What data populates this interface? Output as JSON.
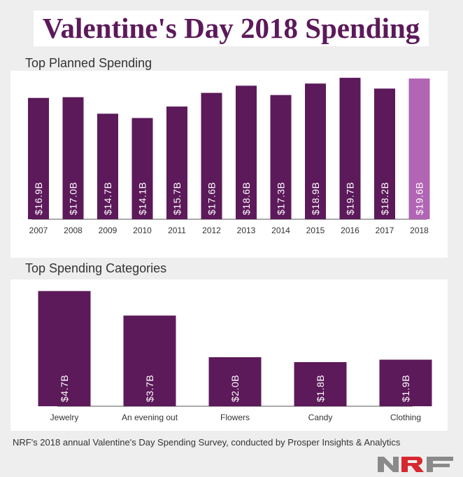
{
  "title": "Valentine's Day 2018 Spending",
  "footer": "NRF's 2018 annual Valentine's Day Spending Survey, conducted by Prosper Insights & Analytics",
  "logo": "NRF",
  "colors": {
    "bar": "#5c1a5a",
    "highlight": "#b165b3",
    "title": "#5c1a5a"
  },
  "chart_data": [
    {
      "type": "bar",
      "title": "Top Planned Spending",
      "categories": [
        "2007",
        "2008",
        "2009",
        "2010",
        "2011",
        "2012",
        "2013",
        "2014",
        "2015",
        "2016",
        "2017",
        "2018"
      ],
      "values": [
        16.9,
        17.0,
        14.7,
        14.1,
        15.7,
        17.6,
        18.6,
        17.3,
        18.9,
        19.7,
        18.2,
        19.6
      ],
      "labels": [
        "$16.9B",
        "$17.0B",
        "$14.7B",
        "$14.1B",
        "$15.7B",
        "$17.6B",
        "$18.6B",
        "$17.3B",
        "$18.9B",
        "$19.7B",
        "$18.2B",
        "$19.6B"
      ],
      "highlight": "2018",
      "unit": "billion USD"
    },
    {
      "type": "bar",
      "title": "Top Spending Categories",
      "categories": [
        "Jewelry",
        "An evening out",
        "Flowers",
        "Candy",
        "Clothing"
      ],
      "values": [
        4.7,
        3.7,
        2.0,
        1.8,
        1.9
      ],
      "labels": [
        "$4.7B",
        "$3.7B",
        "$2.0B",
        "$1.8B",
        "$1.9B"
      ],
      "unit": "billion USD"
    }
  ]
}
